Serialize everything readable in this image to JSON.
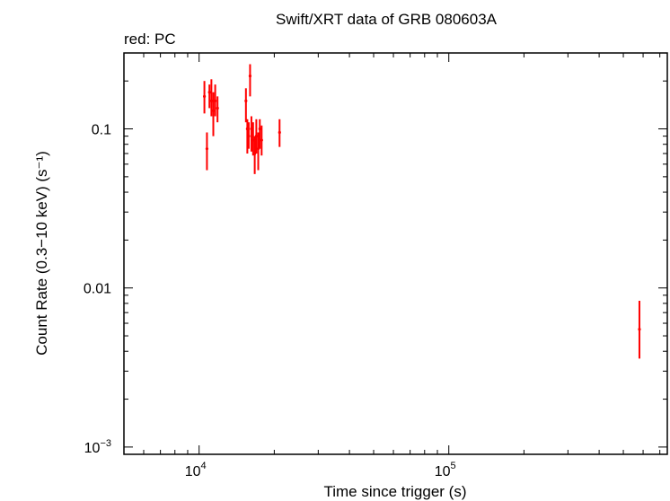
{
  "chart_data": {
    "type": "scatter",
    "title": "Swift/XRT data of GRB 080603A",
    "subtitle": "red: PC",
    "xlabel": "Time since trigger (s)",
    "ylabel": "Count Rate (0.3−10 keV) (s⁻¹)",
    "x_scale": "log",
    "y_scale": "log",
    "xlim": [
      5000,
      750000
    ],
    "ylim": [
      0.0009,
      0.3
    ],
    "x_ticks": [
      {
        "value": 10000,
        "base": "10",
        "exp": "4"
      },
      {
        "value": 100000,
        "base": "10",
        "exp": "5"
      }
    ],
    "y_ticks": [
      {
        "value": 0.1,
        "label": "0.1"
      },
      {
        "value": 0.01,
        "label": "0.01"
      },
      {
        "value": 0.001,
        "label": "10",
        "exp": "−3"
      }
    ],
    "series_color": "#ff0000",
    "series": [
      {
        "name": "PC",
        "points": [
          {
            "x": 10500,
            "y": 0.16,
            "ylo": 0.125,
            "yhi": 0.2
          },
          {
            "x": 10750,
            "y": 0.075,
            "ylo": 0.055,
            "yhi": 0.095
          },
          {
            "x": 11000,
            "y": 0.17,
            "ylo": 0.135,
            "yhi": 0.19
          },
          {
            "x": 11200,
            "y": 0.15,
            "ylo": 0.12,
            "yhi": 0.205
          },
          {
            "x": 11400,
            "y": 0.13,
            "ylo": 0.09,
            "yhi": 0.17
          },
          {
            "x": 11600,
            "y": 0.15,
            "ylo": 0.12,
            "yhi": 0.19
          },
          {
            "x": 11850,
            "y": 0.135,
            "ylo": 0.11,
            "yhi": 0.16
          },
          {
            "x": 15400,
            "y": 0.15,
            "ylo": 0.11,
            "yhi": 0.18
          },
          {
            "x": 15600,
            "y": 0.1,
            "ylo": 0.07,
            "yhi": 0.115
          },
          {
            "x": 15800,
            "y": 0.09,
            "ylo": 0.075,
            "yhi": 0.11
          },
          {
            "x": 16000,
            "y": 0.215,
            "ylo": 0.16,
            "yhi": 0.255
          },
          {
            "x": 16200,
            "y": 0.1,
            "ylo": 0.072,
            "yhi": 0.12
          },
          {
            "x": 16450,
            "y": 0.085,
            "ylo": 0.068,
            "yhi": 0.11
          },
          {
            "x": 16700,
            "y": 0.07,
            "ylo": 0.052,
            "yhi": 0.09
          },
          {
            "x": 16950,
            "y": 0.09,
            "ylo": 0.07,
            "yhi": 0.115
          },
          {
            "x": 17250,
            "y": 0.075,
            "ylo": 0.055,
            "yhi": 0.095
          },
          {
            "x": 17500,
            "y": 0.1,
            "ylo": 0.075,
            "yhi": 0.115
          },
          {
            "x": 17800,
            "y": 0.085,
            "ylo": 0.068,
            "yhi": 0.105
          },
          {
            "x": 21000,
            "y": 0.095,
            "ylo": 0.077,
            "yhi": 0.115
          },
          {
            "x": 580000,
            "y": 0.0055,
            "ylo": 0.0036,
            "yhi": 0.0083
          }
        ]
      }
    ]
  }
}
